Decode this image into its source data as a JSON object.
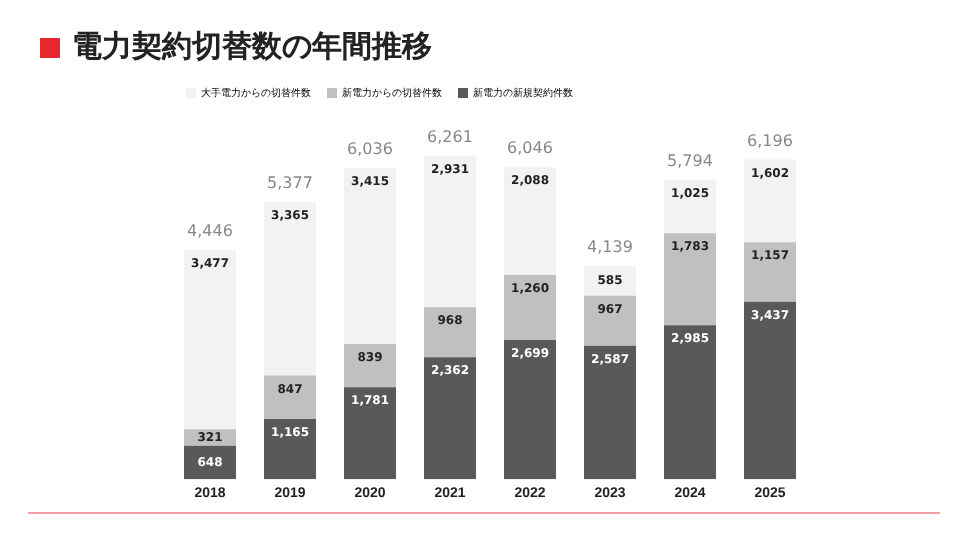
{
  "chart_data": {
    "type": "bar",
    "title": "電力契約切替数の年間推移",
    "categories": [
      "2018",
      "2019",
      "2020",
      "2021",
      "2022",
      "2023",
      "2024",
      "2025"
    ],
    "stacked": true,
    "series": [
      {
        "name": "新電力の新規契約件数",
        "color": "#595959",
        "values": [
          648,
          1165,
          1781,
          2362,
          2699,
          2587,
          2985,
          3437
        ],
        "value_labels": [
          "648",
          "1,165",
          "1,781",
          "2,362",
          "2,699",
          "2,587",
          "2,985",
          "3,437"
        ]
      },
      {
        "name": "新電力からの切替件数",
        "color": "#c0c0c0",
        "values": [
          321,
          847,
          839,
          968,
          1260,
          967,
          1783,
          1157
        ],
        "value_labels": [
          "321",
          "847",
          "839",
          "968",
          "1,260",
          "967",
          "1,783",
          "1,157"
        ]
      },
      {
        "name": "大手電力からの切替件数",
        "color": "#f2f2f2",
        "values": [
          3477,
          3365,
          3415,
          2931,
          2088,
          585,
          1025,
          1602
        ],
        "value_labels": [
          "3,477",
          "3,365",
          "3,415",
          "2,931",
          "2,088",
          "585",
          "1,025",
          "1,602"
        ]
      }
    ],
    "totals": [
      "4,446",
      "5,377",
      "6,036",
      "6,261",
      "6,046",
      "4,139",
      "5,794",
      "6,196"
    ],
    "legend": "top left",
    "tick_labels": "x",
    "grid": false
  }
}
